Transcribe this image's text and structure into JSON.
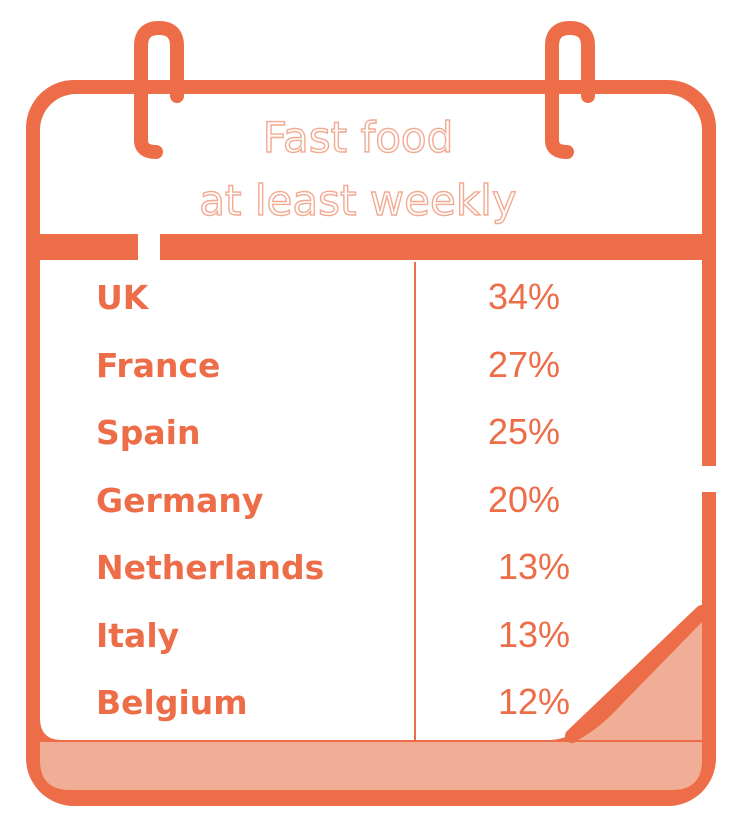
{
  "title": {
    "line1": "Fast food",
    "line2": "at least weekly"
  },
  "colors": {
    "accent": "#ec6d47",
    "light": "#f2aa92",
    "page": "#ffffff"
  },
  "chart_data": {
    "type": "table",
    "title": "Fast food at least weekly",
    "categories": [
      "UK",
      "France",
      "Spain",
      "Germany",
      "Netherlands",
      "Italy",
      "Belgium"
    ],
    "values": [
      34,
      27,
      25,
      20,
      13,
      13,
      12
    ],
    "value_labels": [
      "34%",
      "27%",
      "25%",
      "20%",
      "13%",
      "13%",
      "12%"
    ],
    "unit": "%"
  }
}
